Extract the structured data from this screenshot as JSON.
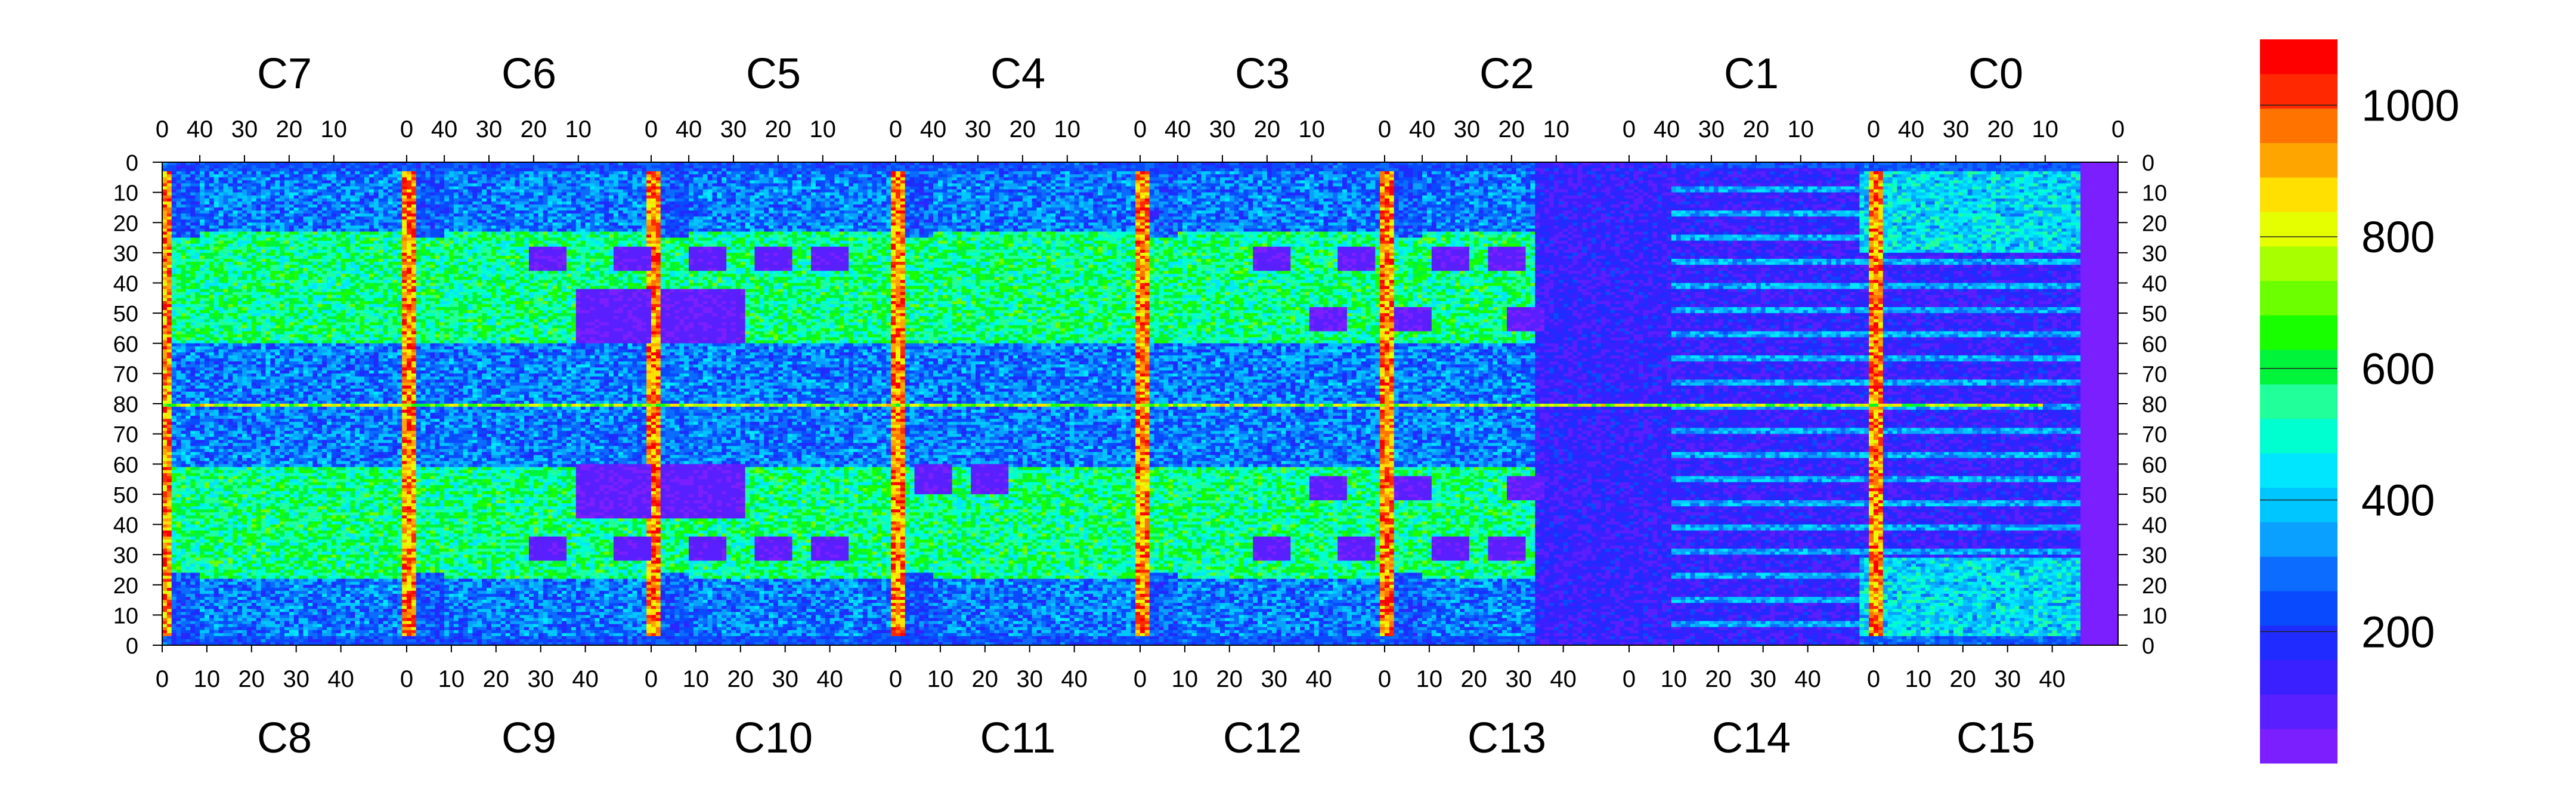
{
  "chart_data": {
    "type": "heatmap",
    "title": "",
    "grid": false,
    "colorbar": {
      "position": "right",
      "ticks": [
        1000,
        800,
        600,
        400,
        200
      ],
      "range": [
        0,
        1100
      ],
      "levels": 20,
      "colors": [
        "#7b1fff",
        "#5a1fff",
        "#3a1fff",
        "#1f2bff",
        "#0a4aff",
        "#0b6cff",
        "#0aa0ff",
        "#00c6ff",
        "#00e6ff",
        "#00ffd0",
        "#20ff9a",
        "#00f53a",
        "#18ff00",
        "#6cff00",
        "#a8ff00",
        "#e6ff00",
        "#ffe000",
        "#ffa500",
        "#ff7300",
        "#ff2800",
        "#ff0000"
      ]
    },
    "top_axis": {
      "chip_labels": [
        "C7",
        "C6",
        "C5",
        "C4",
        "C3",
        "C2",
        "C1",
        "C0"
      ],
      "tick_labels": [
        "40",
        "30",
        "20",
        "10",
        "0"
      ]
    },
    "bottom_axis": {
      "chip_labels": [
        "C8",
        "C9",
        "C10",
        "C11",
        "C12",
        "C13",
        "C14",
        "C15"
      ],
      "tick_labels": [
        "0",
        "10",
        "20",
        "30",
        "40"
      ]
    },
    "y_axis": {
      "tick_labels": [
        "0",
        "10",
        "20",
        "30",
        "40",
        "50",
        "60",
        "70",
        "80",
        "70",
        "60",
        "50",
        "40",
        "30",
        "20",
        "10",
        "0"
      ],
      "range": [
        0,
        160
      ]
    },
    "grid_size": {
      "columns": 416,
      "rows": 160
    },
    "features": {
      "hot_columns": [
        0,
        52,
        104,
        156,
        208,
        260,
        364
      ],
      "hot_row": 80,
      "dead_block_top": [
        [
          88,
          104,
          42,
          60
        ],
        [
          106,
          124,
          42,
          60
        ]
      ],
      "dead_block_bottom": [
        [
          88,
          104,
          100,
          118
        ],
        [
          106,
          124,
          100,
          118
        ]
      ],
      "pads": [
        [
          78,
          86,
          28,
          36
        ],
        [
          96,
          104,
          28,
          36
        ],
        [
          112,
          120,
          28,
          36
        ],
        [
          126,
          134,
          28,
          36
        ],
        [
          138,
          146,
          28,
          36
        ],
        [
          232,
          240,
          28,
          36
        ],
        [
          250,
          258,
          28,
          36
        ],
        [
          270,
          278,
          28,
          36
        ],
        [
          282,
          290,
          28,
          36
        ],
        [
          78,
          86,
          124,
          132
        ],
        [
          96,
          104,
          124,
          132
        ],
        [
          112,
          120,
          124,
          132
        ],
        [
          126,
          134,
          124,
          132
        ],
        [
          138,
          146,
          124,
          132
        ],
        [
          232,
          240,
          124,
          132
        ],
        [
          250,
          258,
          124,
          132
        ],
        [
          270,
          278,
          124,
          132
        ],
        [
          282,
          290,
          124,
          132
        ],
        [
          160,
          168,
          100,
          110
        ],
        [
          172,
          180,
          100,
          110
        ],
        [
          244,
          252,
          48,
          56
        ],
        [
          262,
          270,
          48,
          56
        ],
        [
          286,
          294,
          48,
          56
        ],
        [
          244,
          252,
          104,
          112
        ],
        [
          262,
          270,
          104,
          112
        ],
        [
          286,
          294,
          104,
          112
        ]
      ],
      "low_region_start_column": 292,
      "dead_edge_start_column": 408
    }
  }
}
